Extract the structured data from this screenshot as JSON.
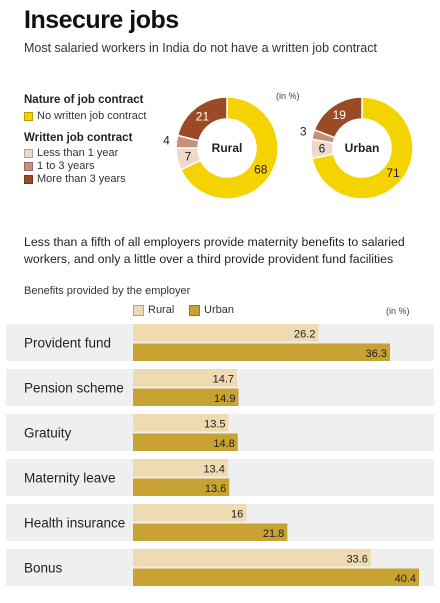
{
  "header": {
    "title": "Insecure jobs",
    "subtitle": "Most salaried workers in India do not have a written job contract"
  },
  "legend": {
    "nature_heading": "Nature of job contract",
    "no_written": "No written job contract",
    "written_heading": "Written job contract",
    "written_items": [
      "Less than 1 year",
      "1 to 3 years",
      "More than 3 years"
    ]
  },
  "colors": {
    "no_written": "#f5d300",
    "lt1": "#f0d8c8",
    "y1to3": "#c7907a",
    "gt3": "#9b4a26",
    "rural_bar": "#eedbb2",
    "urban_bar": "#c8a232",
    "row_bg": "#efefef"
  },
  "section2": {
    "text": "Less than a fifth of all employers provide maternity benefits to salaried workers, and only a little over a third provide provident fund facilities",
    "chart_heading": "Benefits provided by the employer"
  },
  "chart_data": [
    {
      "type": "pie",
      "title": "Rural",
      "unit": "(in %)",
      "labels": [
        "No written job contract",
        "Less than 1 year",
        "1 to 3 years",
        "More than 3 years"
      ],
      "values": [
        68,
        7,
        4,
        21
      ]
    },
    {
      "type": "pie",
      "title": "Urban",
      "unit": "(in %)",
      "labels": [
        "No written job contract",
        "Less than 1 year",
        "1 to 3 years",
        "More than 3 years"
      ],
      "values": [
        71,
        6,
        3,
        19
      ]
    },
    {
      "type": "bar",
      "orientation": "horizontal",
      "unit": "(in %)",
      "categories": [
        "Provident fund",
        "Pension scheme",
        "Gratuity",
        "Maternity leave",
        "Health insurance",
        "Bonus"
      ],
      "series": [
        {
          "name": "Rural",
          "values": [
            26.2,
            14.7,
            13.5,
            13.4,
            16,
            33.6
          ]
        },
        {
          "name": "Urban",
          "values": [
            36.3,
            14.9,
            14.8,
            13.6,
            21.8,
            40.4
          ]
        }
      ],
      "xlim": [
        0,
        40.4
      ]
    }
  ]
}
